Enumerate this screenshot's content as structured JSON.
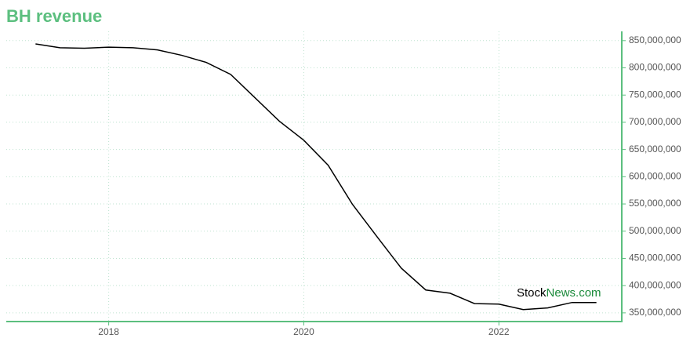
{
  "chart_data": {
    "type": "line",
    "title": "BH revenue",
    "x": [
      2017.25,
      2017.5,
      2017.75,
      2018,
      2018.25,
      2018.5,
      2018.75,
      2019,
      2019.25,
      2019.5,
      2019.75,
      2020,
      2020.25,
      2020.5,
      2020.75,
      2021,
      2021.25,
      2021.5,
      2021.75,
      2022,
      2022.25,
      2022.5,
      2022.75,
      2023
    ],
    "series": [
      {
        "name": "BH revenue",
        "color": "#000000",
        "values": [
          844000000,
          837000000,
          836000000,
          838000000,
          837000000,
          833000000,
          823000000,
          810000000,
          788000000,
          745000000,
          702000000,
          667000000,
          621000000,
          549000000,
          490000000,
          432000000,
          392000000,
          386000000,
          367000000,
          366000000,
          356000000,
          359000000,
          369000000,
          369000000
        ]
      }
    ],
    "xlim": [
      2016.95,
      2023.26
    ],
    "xticks": [
      2018,
      2020,
      2022
    ],
    "ylim": [
      334000000,
      867000000
    ],
    "yticks": [
      {
        "value": 350000000,
        "label": "350,000,000"
      },
      {
        "value": 400000000,
        "label": "400,000,000"
      },
      {
        "value": 450000000,
        "label": "450,000,000"
      },
      {
        "value": 500000000,
        "label": "500,000,000"
      },
      {
        "value": 550000000,
        "label": "550,000,000"
      },
      {
        "value": 600000000,
        "label": "600,000,000"
      },
      {
        "value": 650000000,
        "label": "650,000,000"
      },
      {
        "value": 700000000,
        "label": "700,000,000"
      },
      {
        "value": 750000000,
        "label": "750,000,000"
      },
      {
        "value": 800000000,
        "label": "800,000,000"
      },
      {
        "value": 850000000,
        "label": "850,000,000"
      }
    ],
    "grid": true,
    "axis_color": "#5cbf7f",
    "annotations": [
      "Stock",
      "News.com"
    ]
  }
}
